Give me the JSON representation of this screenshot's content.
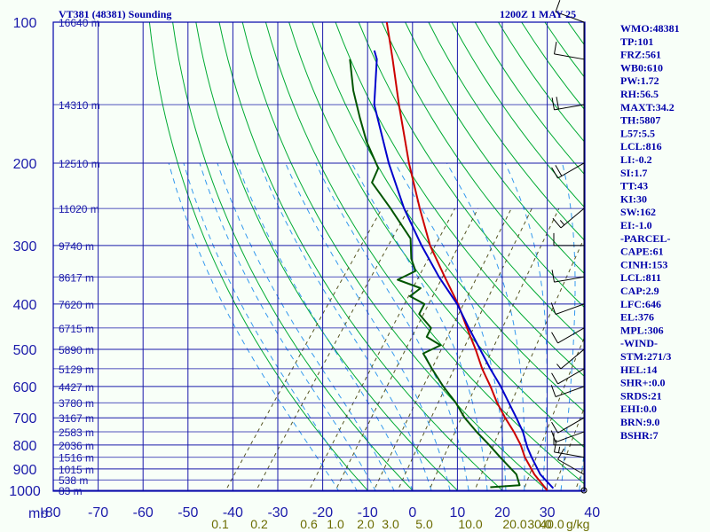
{
  "header": {
    "title": "VT381 (48381) Sounding",
    "time": "1200Z  1 MAY 25"
  },
  "axis": {
    "pressure_unit": "mb",
    "mixing_unit": "g/kg"
  },
  "indices": [
    "WMO:48381",
    "TP:101",
    "FRZ:561",
    "WB0:610",
    "PW:1.72",
    "RH:56.5",
    "MAXT:34.2",
    "TH:5807",
    "L57:5.5",
    "LCL:816",
    "LI:-0.2",
    "SI:1.7",
    "TT:43",
    "KI:30",
    "SW:162",
    "EI:-1.0",
    "-PARCEL-",
    "CAPE:61",
    "CINH:153",
    "LCL:811",
    "CAP:2.9",
    "LFC:646",
    "EL:376",
    "MPL:306",
    "-WIND-",
    "STM:271/3",
    "HEL:14",
    "SHR+:0.0",
    "SRDS:21",
    "EHI:0.0",
    "BRN:9.0",
    "BSHR:7"
  ],
  "chart_data": {
    "type": "skew-t",
    "title": "VT381 (48381) Sounding",
    "time": "1200Z  1 MAY 25",
    "p_ticks": [
      100,
      200,
      300,
      400,
      500,
      600,
      700,
      800,
      900,
      1000
    ],
    "plim": [
      100,
      1000
    ],
    "t_ticks": [
      -80,
      -70,
      -60,
      -50,
      -40,
      -30,
      -20,
      -10,
      0,
      10,
      20,
      30,
      40
    ],
    "tlim": [
      -80,
      40
    ],
    "height_labels": [
      {
        "p": 100,
        "label": "16640 m"
      },
      {
        "p": 150,
        "label": "14310 m"
      },
      {
        "p": 200,
        "label": "12510 m"
      },
      {
        "p": 250,
        "label": "11020 m"
      },
      {
        "p": 300,
        "label": "9740 m"
      },
      {
        "p": 350,
        "label": "8617 m"
      },
      {
        "p": 400,
        "label": "7620 m"
      },
      {
        "p": 450,
        "label": "6715 m"
      },
      {
        "p": 500,
        "label": "5890 m"
      },
      {
        "p": 550,
        "label": "5129 m"
      },
      {
        "p": 600,
        "label": "4427 m"
      },
      {
        "p": 650,
        "label": "3780 m"
      },
      {
        "p": 700,
        "label": "3167 m"
      },
      {
        "p": 750,
        "label": "2583 m"
      },
      {
        "p": 800,
        "label": "2036 m"
      },
      {
        "p": 850,
        "label": "1516 m"
      },
      {
        "p": 900,
        "label": "1015 m"
      },
      {
        "p": 950,
        "label": "538 m"
      },
      {
        "p": 1000,
        "label": "83 m"
      }
    ],
    "mixing_ratios": [
      "0.1",
      "0.2",
      "0.6",
      "1.0",
      "2.0",
      "3.0",
      "5.0",
      "10.0",
      "20.0",
      "30.0",
      "40.0"
    ],
    "series": [
      {
        "name": "Temperature",
        "color": "#cc0000",
        "points": [
          {
            "p": 1000,
            "t": 30.0
          },
          {
            "p": 925,
            "t": 24.5
          },
          {
            "p": 850,
            "t": 19.5
          },
          {
            "p": 800,
            "t": 16.5
          },
          {
            "p": 750,
            "t": 12.8
          },
          {
            "p": 700,
            "t": 8.5
          },
          {
            "p": 650,
            "t": 4.2
          },
          {
            "p": 600,
            "t": 0.0
          },
          {
            "p": 550,
            "t": -4.8
          },
          {
            "p": 500,
            "t": -9.5
          },
          {
            "p": 450,
            "t": -15.0
          },
          {
            "p": 400,
            "t": -21.0
          },
          {
            "p": 350,
            "t": -28.5
          },
          {
            "p": 300,
            "t": -37.0
          },
          {
            "p": 250,
            "t": -45.5
          },
          {
            "p": 200,
            "t": -55.5
          },
          {
            "p": 150,
            "t": -67.5
          },
          {
            "p": 120,
            "t": -76.5
          },
          {
            "p": 100,
            "t": -84.0
          }
        ]
      },
      {
        "name": "Parcel",
        "color": "#0000cc",
        "points": [
          {
            "p": 990,
            "t": 31.0
          },
          {
            "p": 925,
            "t": 25.8
          },
          {
            "p": 850,
            "t": 21.0
          },
          {
            "p": 811,
            "t": 18.5
          },
          {
            "p": 750,
            "t": 14.8
          },
          {
            "p": 700,
            "t": 11.0
          },
          {
            "p": 650,
            "t": 6.8
          },
          {
            "p": 600,
            "t": 2.3
          },
          {
            "p": 550,
            "t": -3.0
          },
          {
            "p": 500,
            "t": -8.5
          },
          {
            "p": 450,
            "t": -14.6
          },
          {
            "p": 400,
            "t": -21.2
          },
          {
            "p": 350,
            "t": -29.8
          },
          {
            "p": 300,
            "t": -38.9
          },
          {
            "p": 250,
            "t": -49.0
          },
          {
            "p": 200,
            "t": -60.0
          },
          {
            "p": 150,
            "t": -73.0
          },
          {
            "p": 120,
            "t": -80.0
          },
          {
            "p": 115,
            "t": -82.0
          }
        ]
      },
      {
        "name": "Dewpoint",
        "color": "#005500",
        "points": [
          {
            "p": 985,
            "t": 16.8
          },
          {
            "p": 975,
            "t": 23.0
          },
          {
            "p": 925,
            "t": 20.5
          },
          {
            "p": 850,
            "t": 14.0
          },
          {
            "p": 800,
            "t": 9.5
          },
          {
            "p": 750,
            "t": 4.5
          },
          {
            "p": 700,
            "t": -0.5
          },
          {
            "p": 650,
            "t": -5.0
          },
          {
            "p": 600,
            "t": -10.5
          },
          {
            "p": 550,
            "t": -16.0
          },
          {
            "p": 510,
            "t": -20.5
          },
          {
            "p": 490,
            "t": -18.0
          },
          {
            "p": 470,
            "t": -22.5
          },
          {
            "p": 450,
            "t": -23.0
          },
          {
            "p": 420,
            "t": -28.0
          },
          {
            "p": 400,
            "t": -28.5
          },
          {
            "p": 385,
            "t": -33.0
          },
          {
            "p": 370,
            "t": -32.0
          },
          {
            "p": 355,
            "t": -38.5
          },
          {
            "p": 340,
            "t": -36.0
          },
          {
            "p": 320,
            "t": -39.0
          },
          {
            "p": 290,
            "t": -42.5
          },
          {
            "p": 250,
            "t": -52.0
          },
          {
            "p": 220,
            "t": -60.5
          },
          {
            "p": 205,
            "t": -61.5
          },
          {
            "p": 180,
            "t": -68.5
          },
          {
            "p": 160,
            "t": -74.0
          },
          {
            "p": 140,
            "t": -80.0
          },
          {
            "p": 120,
            "t": -86.0
          }
        ]
      }
    ],
    "wind_barbs": [
      {
        "p": 1000,
        "dir": 180,
        "spd": 0
      },
      {
        "p": 925,
        "dir": 300,
        "spd": 10
      },
      {
        "p": 850,
        "dir": 280,
        "spd": 15
      },
      {
        "p": 800,
        "dir": 270,
        "spd": 10
      },
      {
        "p": 750,
        "dir": 250,
        "spd": 10
      },
      {
        "p": 700,
        "dir": 240,
        "spd": 10
      },
      {
        "p": 600,
        "dir": 250,
        "spd": 10
      },
      {
        "p": 550,
        "dir": 240,
        "spd": 10
      },
      {
        "p": 500,
        "dir": 230,
        "spd": 5
      },
      {
        "p": 450,
        "dir": 240,
        "spd": 10
      },
      {
        "p": 400,
        "dir": 250,
        "spd": 10
      },
      {
        "p": 350,
        "dir": 260,
        "spd": 10
      },
      {
        "p": 300,
        "dir": 270,
        "spd": 10
      },
      {
        "p": 250,
        "dir": 230,
        "spd": 15
      },
      {
        "p": 200,
        "dir": 240,
        "spd": 20
      },
      {
        "p": 150,
        "dir": 260,
        "spd": 20
      },
      {
        "p": 120,
        "dir": 280,
        "spd": 10
      },
      {
        "p": 100,
        "dir": 290,
        "spd": 10
      }
    ],
    "colors": {
      "frame": "#0000aa",
      "isobar": "#1a1aaa",
      "isotherm": "#1a1aaa",
      "dry_adiabat": "#00aa33",
      "moist_adiabat": "#3399ee",
      "mixing_ratio": "#555522",
      "background": "#f8fff8"
    }
  }
}
